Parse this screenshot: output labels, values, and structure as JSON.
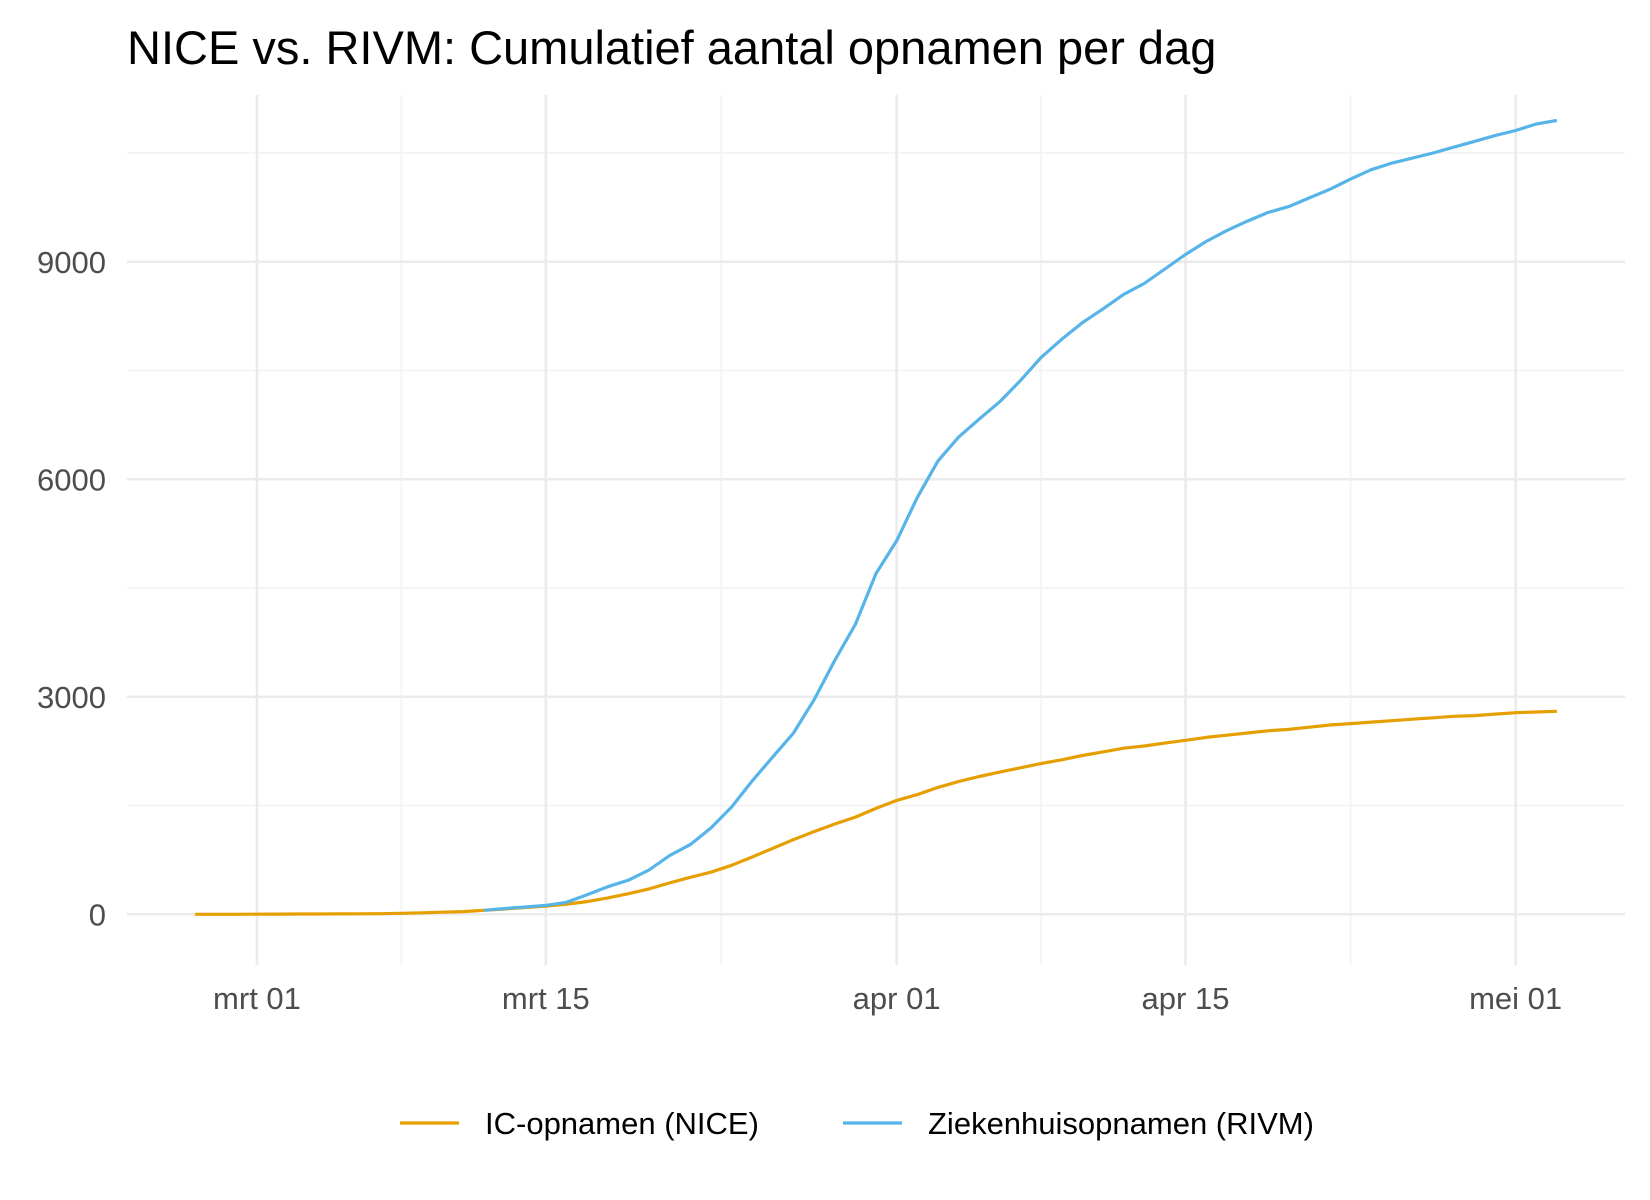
{
  "chart_data": {
    "type": "line",
    "title": "NICE vs. RIVM: Cumulatief aantal opnamen per dag",
    "xlabel": "",
    "ylabel": "",
    "x_start": "2020-02-27",
    "x_end": "2020-05-03",
    "ylim": [
      -700,
      11300
    ],
    "y_ticks": [
      0,
      3000,
      6000,
      9000
    ],
    "y_tick_labels": [
      "0",
      "3000",
      "6000",
      "9000"
    ],
    "x_ticks": [
      "2020-03-01",
      "2020-03-15",
      "2020-04-01",
      "2020-04-15",
      "2020-05-01"
    ],
    "x_tick_labels": [
      "mrt 01",
      "mrt 15",
      "apr 01",
      "apr 15",
      "mei 01"
    ],
    "grid": true,
    "legend_position": "bottom",
    "series": [
      {
        "name": "IC-opnamen (NICE)",
        "color": "#E69F00",
        "points": [
          [
            "2020-02-27",
            0
          ],
          [
            "2020-02-28",
            0
          ],
          [
            "2020-02-29",
            0
          ],
          [
            "2020-03-01",
            1
          ],
          [
            "2020-03-02",
            2
          ],
          [
            "2020-03-03",
            3
          ],
          [
            "2020-03-04",
            4
          ],
          [
            "2020-03-05",
            5
          ],
          [
            "2020-03-06",
            6
          ],
          [
            "2020-03-07",
            8
          ],
          [
            "2020-03-08",
            13
          ],
          [
            "2020-03-09",
            20
          ],
          [
            "2020-03-10",
            28
          ],
          [
            "2020-03-11",
            36
          ],
          [
            "2020-03-12",
            55
          ],
          [
            "2020-03-13",
            72
          ],
          [
            "2020-03-14",
            93
          ],
          [
            "2020-03-15",
            112
          ],
          [
            "2020-03-16",
            140
          ],
          [
            "2020-03-17",
            175
          ],
          [
            "2020-03-18",
            225
          ],
          [
            "2020-03-19",
            283
          ],
          [
            "2020-03-20",
            350
          ],
          [
            "2020-03-21",
            432
          ],
          [
            "2020-03-22",
            510
          ],
          [
            "2020-03-23",
            580
          ],
          [
            "2020-03-24",
            675
          ],
          [
            "2020-03-25",
            790
          ],
          [
            "2020-03-26",
            910
          ],
          [
            "2020-03-27",
            1030
          ],
          [
            "2020-03-28",
            1140
          ],
          [
            "2020-03-29",
            1245
          ],
          [
            "2020-03-30",
            1340
          ],
          [
            "2020-03-31",
            1460
          ],
          [
            "2020-04-01",
            1570
          ],
          [
            "2020-04-02",
            1650
          ],
          [
            "2020-04-03",
            1750
          ],
          [
            "2020-04-04",
            1830
          ],
          [
            "2020-04-05",
            1900
          ],
          [
            "2020-04-06",
            1960
          ],
          [
            "2020-04-07",
            2020
          ],
          [
            "2020-04-08",
            2080
          ],
          [
            "2020-04-09",
            2130
          ],
          [
            "2020-04-10",
            2190
          ],
          [
            "2020-04-11",
            2240
          ],
          [
            "2020-04-12",
            2290
          ],
          [
            "2020-04-13",
            2320
          ],
          [
            "2020-04-14",
            2360
          ],
          [
            "2020-04-15",
            2400
          ],
          [
            "2020-04-16",
            2440
          ],
          [
            "2020-04-17",
            2470
          ],
          [
            "2020-04-18",
            2500
          ],
          [
            "2020-04-19",
            2530
          ],
          [
            "2020-04-20",
            2550
          ],
          [
            "2020-04-21",
            2580
          ],
          [
            "2020-04-22",
            2610
          ],
          [
            "2020-04-23",
            2630
          ],
          [
            "2020-04-24",
            2650
          ],
          [
            "2020-04-25",
            2670
          ],
          [
            "2020-04-26",
            2690
          ],
          [
            "2020-04-27",
            2710
          ],
          [
            "2020-04-28",
            2730
          ],
          [
            "2020-04-29",
            2740
          ],
          [
            "2020-04-30",
            2760
          ],
          [
            "2020-05-01",
            2780
          ],
          [
            "2020-05-02",
            2790
          ],
          [
            "2020-05-03",
            2800
          ]
        ]
      },
      {
        "name": "Ziekenhuisopnamen (RIVM)",
        "color": "#56B4E9",
        "points": [
          [
            "2020-03-12",
            55
          ],
          [
            "2020-03-13",
            80
          ],
          [
            "2020-03-14",
            100
          ],
          [
            "2020-03-15",
            122
          ],
          [
            "2020-03-16",
            165
          ],
          [
            "2020-03-17",
            270
          ],
          [
            "2020-03-18",
            380
          ],
          [
            "2020-03-19",
            470
          ],
          [
            "2020-03-20",
            610
          ],
          [
            "2020-03-21",
            810
          ],
          [
            "2020-03-22",
            960
          ],
          [
            "2020-03-23",
            1190
          ],
          [
            "2020-03-24",
            1480
          ],
          [
            "2020-03-25",
            1840
          ],
          [
            "2020-03-26",
            2170
          ],
          [
            "2020-03-27",
            2500
          ],
          [
            "2020-03-28",
            2960
          ],
          [
            "2020-03-29",
            3500
          ],
          [
            "2020-03-30",
            4000
          ],
          [
            "2020-03-31",
            4700
          ],
          [
            "2020-04-01",
            5150
          ],
          [
            "2020-04-02",
            5750
          ],
          [
            "2020-04-03",
            6250
          ],
          [
            "2020-04-04",
            6580
          ],
          [
            "2020-04-05",
            6830
          ],
          [
            "2020-04-06",
            7070
          ],
          [
            "2020-04-07",
            7360
          ],
          [
            "2020-04-08",
            7680
          ],
          [
            "2020-04-09",
            7930
          ],
          [
            "2020-04-10",
            8160
          ],
          [
            "2020-04-11",
            8350
          ],
          [
            "2020-04-12",
            8550
          ],
          [
            "2020-04-13",
            8700
          ],
          [
            "2020-04-14",
            8900
          ],
          [
            "2020-04-15",
            9100
          ],
          [
            "2020-04-16",
            9280
          ],
          [
            "2020-04-17",
            9430
          ],
          [
            "2020-04-18",
            9560
          ],
          [
            "2020-04-19",
            9680
          ],
          [
            "2020-04-20",
            9760
          ],
          [
            "2020-04-21",
            9880
          ],
          [
            "2020-04-22",
            10000
          ],
          [
            "2020-04-23",
            10140
          ],
          [
            "2020-04-24",
            10270
          ],
          [
            "2020-04-25",
            10360
          ],
          [
            "2020-04-26",
            10430
          ],
          [
            "2020-04-27",
            10500
          ],
          [
            "2020-04-28",
            10580
          ],
          [
            "2020-04-29",
            10660
          ],
          [
            "2020-04-30",
            10740
          ],
          [
            "2020-05-01",
            10810
          ],
          [
            "2020-05-02",
            10900
          ],
          [
            "2020-05-03",
            10950
          ]
        ]
      }
    ]
  }
}
